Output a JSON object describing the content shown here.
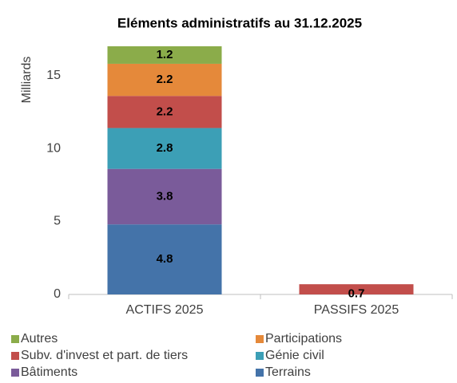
{
  "chart_data": {
    "type": "stacked_bar",
    "title": "Eléments  administratifs au 31.12.2025",
    "y_label": "Milliards",
    "categories": [
      "ACTIFS 2025",
      "PASSIFS 2025"
    ],
    "series": [
      {
        "name": "Terrains",
        "color": "#4473a9",
        "values": [
          4.8,
          null
        ]
      },
      {
        "name": "Bâtiments",
        "color": "#7a5b9a",
        "values": [
          3.8,
          null
        ]
      },
      {
        "name": "Génie civil",
        "color": "#3c9fb6",
        "values": [
          2.8,
          null
        ]
      },
      {
        "name": "Subv. d'invest et part. de tiers",
        "color": "#c24e4b",
        "values": [
          2.2,
          0.7
        ]
      },
      {
        "name": "Participations",
        "color": "#e5893a",
        "values": [
          2.2,
          null
        ]
      },
      {
        "name": "Autres",
        "color": "#8bac4a",
        "values": [
          1.2,
          null
        ]
      }
    ],
    "ylim": [
      0,
      17
    ],
    "yticks": [
      0,
      5,
      10,
      15
    ],
    "grid": false
  }
}
